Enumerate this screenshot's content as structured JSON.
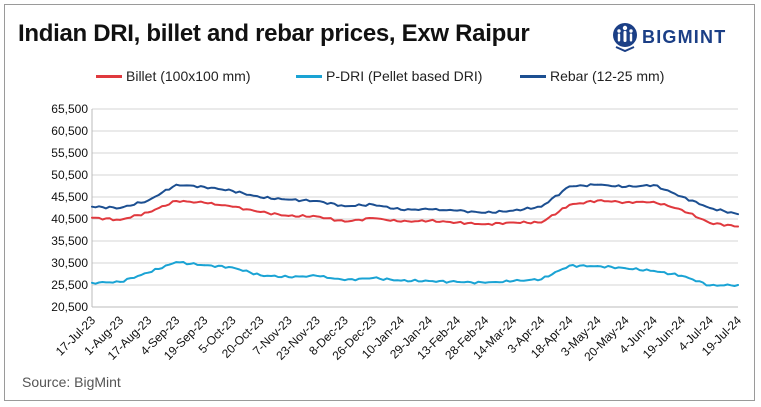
{
  "title": "Indian DRI, billet and rebar prices, Exw Raipur",
  "brand": {
    "name": "BIGMINT",
    "color": "#1b3f86",
    "icon": "bigmint-logo-icon"
  },
  "source": "Source: BigMint",
  "chart_data": {
    "type": "line",
    "title": "Indian DRI, billet and rebar prices, Exw Raipur",
    "xlabel": "",
    "ylabel": "",
    "ylim": [
      20500,
      65500
    ],
    "yticks": [
      20500,
      25500,
      30500,
      35500,
      40500,
      45500,
      50500,
      55500,
      60500,
      65500
    ],
    "ytick_labels": [
      "20,500",
      "25,500",
      "30,500",
      "35,500",
      "40,500",
      "45,500",
      "50,500",
      "55,500",
      "60,500",
      "65,500"
    ],
    "grid": true,
    "legend": "top",
    "categories": [
      "17-Jul-23",
      "1-Aug-23",
      "17-Aug-23",
      "4-Sep-23",
      "19-Sep-23",
      "5-Oct-23",
      "20-Oct-23",
      "7-Nov-23",
      "23-Nov-23",
      "8-Dec-23",
      "26-Dec-23",
      "10-Jan-24",
      "29-Jan-24",
      "13-Feb-24",
      "28-Feb-24",
      "14-Mar-24",
      "3-Apr-24",
      "18-Apr-24",
      "3-May-24",
      "20-May-24",
      "4-Jun-24",
      "19-Jun-24",
      "4-Jul-24",
      "19-Jul-24"
    ],
    "series": [
      {
        "name": "Billet (100x100 mm)",
        "color": "#e0393e",
        "values": [
          40800,
          40300,
          42000,
          44600,
          44200,
          43300,
          42100,
          41200,
          41100,
          39900,
          40700,
          39900,
          40100,
          39700,
          39300,
          39700,
          39700,
          43700,
          44700,
          44300,
          44400,
          42600,
          39600,
          38800
        ]
      },
      {
        "name": "P-DRI (Pellet based DRI)",
        "color": "#1aa3d4",
        "values": [
          26000,
          26200,
          28300,
          30700,
          30000,
          29500,
          27700,
          27300,
          27600,
          26600,
          27100,
          26500,
          26400,
          26200,
          26000,
          26400,
          26800,
          29900,
          29800,
          29300,
          28700,
          27600,
          25400,
          25500
        ]
      },
      {
        "name": "Rebar (12-25 mm)",
        "color": "#1c4f91",
        "values": [
          43300,
          43000,
          44700,
          48300,
          47800,
          46900,
          45400,
          44900,
          44600,
          43400,
          43800,
          42600,
          42700,
          42400,
          41900,
          42400,
          43300,
          47900,
          48300,
          47800,
          48200,
          45600,
          43000,
          41600
        ]
      }
    ]
  }
}
